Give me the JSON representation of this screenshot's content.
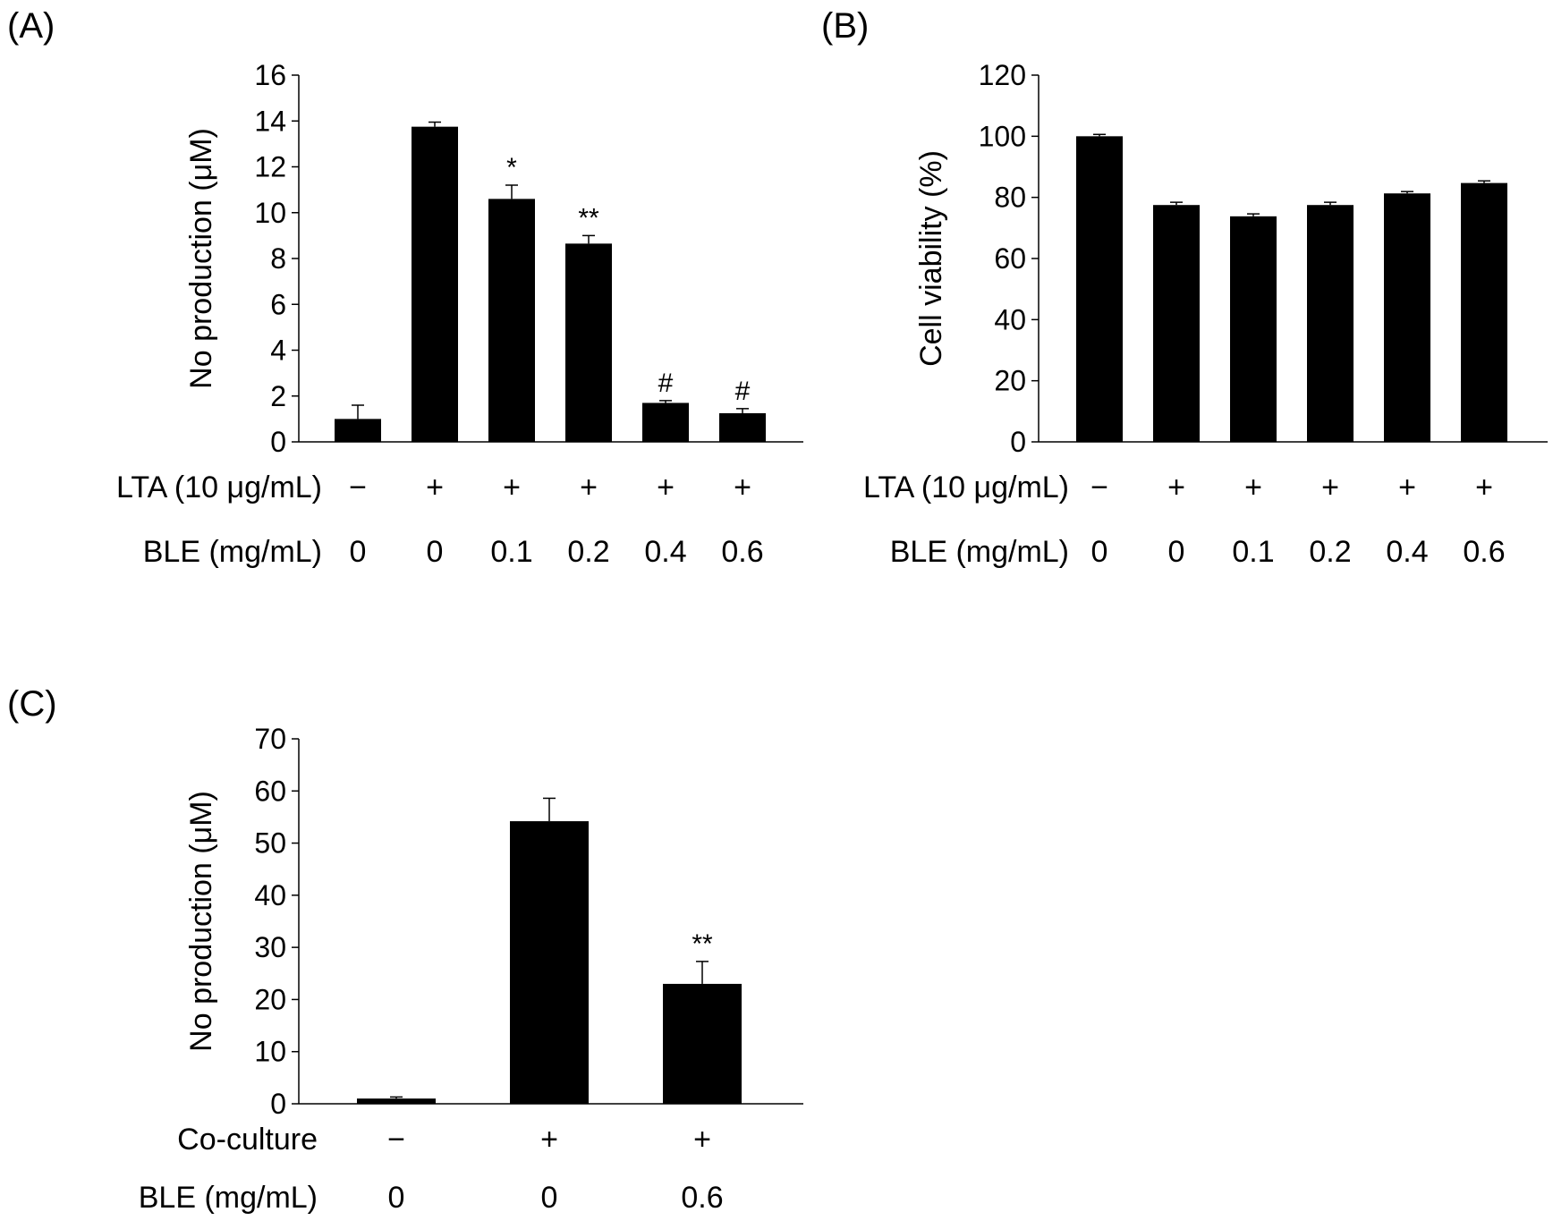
{
  "colors": {
    "bar": "#000000",
    "axis": "#000000",
    "background": "#ffffff"
  },
  "chart_data": [
    {
      "panel_label": "(A)",
      "type": "bar",
      "ylabel": "No production (μM)",
      "ylim": [
        0,
        16
      ],
      "yticks": [
        0,
        2,
        4,
        6,
        8,
        10,
        12,
        14,
        16
      ],
      "values": [
        1.0,
        13.75,
        10.6,
        8.65,
        1.7,
        1.25
      ],
      "errors": [
        0.6,
        0.2,
        0.6,
        0.35,
        0.1,
        0.2
      ],
      "annotations": [
        "",
        "",
        "*",
        "**",
        "#",
        "#"
      ],
      "rows": [
        {
          "label": "LTA (10 μg/mL)",
          "values": [
            "−",
            "+",
            "+",
            "+",
            "+",
            "+"
          ]
        },
        {
          "label": "BLE (mg/mL)",
          "values": [
            "0",
            "0",
            "0.1",
            "0.2",
            "0.4",
            "0.6"
          ]
        }
      ],
      "grid": false
    },
    {
      "panel_label": "(B)",
      "type": "bar",
      "ylabel": "Cell viability (%)",
      "ylim": [
        0,
        120
      ],
      "yticks": [
        0,
        20,
        40,
        60,
        80,
        100,
        120
      ],
      "values": [
        100,
        77.5,
        73.8,
        77.5,
        81.3,
        84.7
      ],
      "errors": [
        0.6,
        0.9,
        0.8,
        0.9,
        0.6,
        0.7
      ],
      "annotations": [
        "",
        "",
        "",
        "",
        "",
        ""
      ],
      "rows": [
        {
          "label": "LTA (10 μg/mL)",
          "values": [
            "−",
            "+",
            "+",
            "+",
            "+",
            "+"
          ]
        },
        {
          "label": "BLE (mg/mL)",
          "values": [
            "0",
            "0",
            "0.1",
            "0.2",
            "0.4",
            "0.6"
          ]
        }
      ],
      "grid": false
    },
    {
      "panel_label": "(C)",
      "type": "bar",
      "ylabel": "No production (μM)",
      "ylim": [
        0,
        70
      ],
      "yticks": [
        0,
        10,
        20,
        30,
        40,
        50,
        60,
        70
      ],
      "values": [
        1.0,
        54.2,
        23.0
      ],
      "errors": [
        0.3,
        4.4,
        4.3
      ],
      "annotations": [
        "",
        "",
        "**"
      ],
      "rows": [
        {
          "label": "Co-culture",
          "values": [
            "−",
            "+",
            "+"
          ]
        },
        {
          "label": "BLE (mg/mL)",
          "values": [
            "0",
            "0",
            "0.6"
          ]
        }
      ],
      "grid": false
    }
  ]
}
